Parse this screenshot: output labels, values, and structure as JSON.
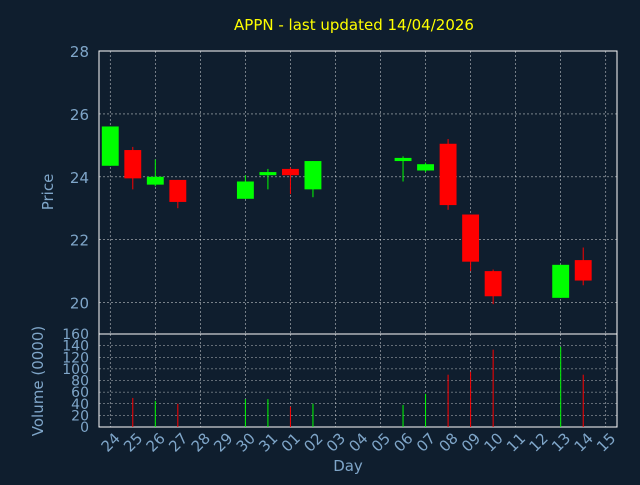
{
  "colors": {
    "background": "#0f1e2e",
    "frame": "#ffffff",
    "grid": "#ffffff",
    "title": "#ffff00",
    "axis_text": "#7fa6c9",
    "up": "#00ff00",
    "down": "#ff0000"
  },
  "chart_data": [
    {
      "type": "candlestick",
      "title": "APPN - last updated 14/04/2026",
      "xlabel": "",
      "ylabel": "Price",
      "ylim": [
        19,
        28
      ],
      "yticks": [
        20,
        22,
        24,
        26,
        28
      ],
      "grid": true,
      "x_ticks": [
        "24",
        "25",
        "26",
        "27",
        "28",
        "29",
        "30",
        "31",
        "01",
        "02",
        "03",
        "04",
        "05",
        "06",
        "07",
        "08",
        "09",
        "10",
        "11",
        "12",
        "13",
        "14",
        "15"
      ],
      "candles": [
        {
          "x": "24",
          "open": 24.35,
          "high": 25.6,
          "low": 24.35,
          "close": 25.6
        },
        {
          "x": "25",
          "open": 24.85,
          "high": 24.95,
          "low": 23.6,
          "close": 23.95
        },
        {
          "x": "26",
          "open": 23.75,
          "high": 24.55,
          "low": 23.7,
          "close": 24.0
        },
        {
          "x": "27",
          "open": 23.9,
          "high": 23.9,
          "low": 23.0,
          "close": 23.2
        },
        {
          "x": "30",
          "open": 23.3,
          "high": 24.05,
          "low": 23.3,
          "close": 23.85
        },
        {
          "x": "31",
          "open": 24.05,
          "high": 24.25,
          "low": 23.6,
          "close": 24.15
        },
        {
          "x": "01",
          "open": 24.25,
          "high": 24.3,
          "low": 23.45,
          "close": 24.05
        },
        {
          "x": "02",
          "open": 23.6,
          "high": 24.5,
          "low": 23.35,
          "close": 24.5
        },
        {
          "x": "06",
          "open": 24.5,
          "high": 24.65,
          "low": 23.85,
          "close": 24.6
        },
        {
          "x": "07",
          "open": 24.2,
          "high": 24.45,
          "low": 24.15,
          "close": 24.4
        },
        {
          "x": "08",
          "open": 25.05,
          "high": 25.2,
          "low": 22.95,
          "close": 23.1
        },
        {
          "x": "09",
          "open": 22.8,
          "high": 22.8,
          "low": 21.0,
          "close": 21.3
        },
        {
          "x": "10",
          "open": 21.0,
          "high": 21.05,
          "low": 19.95,
          "close": 20.2
        },
        {
          "x": "13",
          "open": 20.15,
          "high": 21.2,
          "low": 20.15,
          "close": 21.2
        },
        {
          "x": "14",
          "open": 21.35,
          "high": 21.75,
          "low": 20.55,
          "close": 20.7
        }
      ]
    },
    {
      "type": "bar",
      "title": "",
      "xlabel": "Day",
      "ylabel": "Volume (0000)",
      "ylim": [
        0,
        160
      ],
      "yticks": [
        0,
        20,
        40,
        60,
        80,
        100,
        120,
        140,
        160
      ],
      "grid": true,
      "categories": [
        "24",
        "25",
        "26",
        "27",
        "28",
        "29",
        "30",
        "31",
        "01",
        "02",
        "03",
        "04",
        "05",
        "06",
        "07",
        "08",
        "09",
        "10",
        "11",
        "12",
        "13",
        "14",
        "15"
      ],
      "bars": [
        {
          "x": "24",
          "value": 0,
          "direction": "up"
        },
        {
          "x": "25",
          "value": 50,
          "direction": "down"
        },
        {
          "x": "26",
          "value": 45,
          "direction": "up"
        },
        {
          "x": "27",
          "value": 40,
          "direction": "down"
        },
        {
          "x": "30",
          "value": 48,
          "direction": "up"
        },
        {
          "x": "31",
          "value": 48,
          "direction": "up"
        },
        {
          "x": "01",
          "value": 35,
          "direction": "down"
        },
        {
          "x": "02",
          "value": 40,
          "direction": "up"
        },
        {
          "x": "06",
          "value": 38,
          "direction": "up"
        },
        {
          "x": "07",
          "value": 57,
          "direction": "up"
        },
        {
          "x": "08",
          "value": 90,
          "direction": "down"
        },
        {
          "x": "09",
          "value": 95,
          "direction": "down"
        },
        {
          "x": "10",
          "value": 133,
          "direction": "down"
        },
        {
          "x": "13",
          "value": 138,
          "direction": "up"
        },
        {
          "x": "14",
          "value": 90,
          "direction": "down"
        }
      ]
    }
  ]
}
